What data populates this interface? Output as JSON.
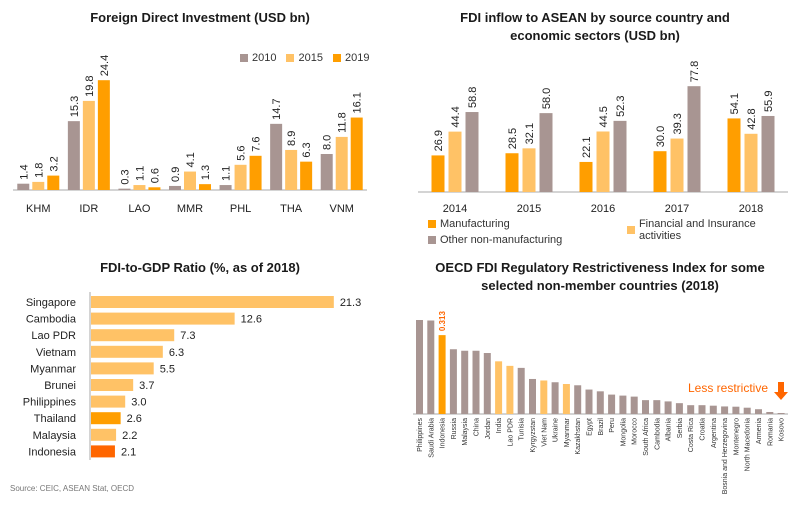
{
  "colors": {
    "c2010": "#a89592",
    "c2015": "#ffc266",
    "c2019": "#ff9e00",
    "manuf": "#ff9e00",
    "fin": "#ffc266",
    "other": "#a89592",
    "axis": "#aaaaaa",
    "highlight": "#ff6600"
  },
  "source": "Source: CEIC, ASEAN Stat, OECD",
  "chart_data": [
    {
      "type": "bar",
      "title": "Foreign Direct Investment (USD bn)",
      "categories": [
        "KHM",
        "IDR",
        "LAO",
        "MMR",
        "PHL",
        "THA",
        "VNM"
      ],
      "series": [
        {
          "name": "2010",
          "values": [
            1.4,
            15.3,
            0.3,
            0.9,
            1.1,
            14.7,
            8.0
          ],
          "labels": [
            "1.4",
            "15.3",
            "0.3",
            "0.9",
            "1.1",
            "14.7",
            "8.0"
          ]
        },
        {
          "name": "2015",
          "values": [
            1.8,
            19.8,
            1.1,
            4.1,
            5.6,
            8.9,
            11.8
          ],
          "labels": [
            "1.8",
            "19.8",
            "1.1",
            "4.1",
            "5.6",
            "8.9",
            "11.8"
          ]
        },
        {
          "name": "2019",
          "values": [
            3.2,
            24.4,
            0.6,
            1.3,
            7.6,
            6.3,
            16.1
          ],
          "labels": [
            "3.2",
            "24.4",
            "0.6",
            "1.3",
            "7.6",
            "6.3",
            "16.1"
          ]
        }
      ],
      "legend_position": "top-right"
    },
    {
      "type": "bar",
      "title": "FDI inflow to ASEAN by source country and economic sectors (USD bn)",
      "categories": [
        "2014",
        "2015",
        "2016",
        "2017",
        "2018"
      ],
      "series": [
        {
          "name": "Manufacturing",
          "values": [
            26.9,
            28.5,
            22.1,
            30.0,
            54.1
          ],
          "labels": [
            "26.9",
            "28.5",
            "22.1",
            "30.0",
            "54.1"
          ]
        },
        {
          "name": "Financial and Insurance activities",
          "values": [
            44.4,
            32.1,
            44.5,
            39.3,
            42.8
          ],
          "labels": [
            "44.4",
            "32.1",
            "44.5",
            "39.3",
            "42.8"
          ]
        },
        {
          "name": "Other non-manufacturing",
          "values": [
            58.8,
            58.0,
            52.3,
            77.8,
            55.9
          ],
          "labels": [
            "58.8",
            "58.0",
            "52.3",
            "77.8",
            "55.9"
          ]
        }
      ],
      "legend_position": "bottom"
    },
    {
      "type": "bar",
      "orientation": "horizontal",
      "title": "FDI-to-GDP Ratio (%, as of 2018)",
      "categories": [
        "Singapore",
        "Cambodia",
        "Lao PDR",
        "Vietnam",
        "Myanmar",
        "Brunei",
        "Philippines",
        "Thailand",
        "Malaysia",
        "Indonesia"
      ],
      "values": [
        21.3,
        12.6,
        7.3,
        6.3,
        5.5,
        3.7,
        3.0,
        2.6,
        2.2,
        2.1
      ],
      "labels": [
        "21.3",
        "12.6",
        "7.3",
        "6.3",
        "5.5",
        "3.7",
        "3.0",
        "2.6",
        "2.2",
        "2.1"
      ],
      "highlight": {
        "Thailand": "#ff9e00",
        "Indonesia": "#ff6600"
      }
    },
    {
      "type": "bar",
      "title": "OECD FDI Regulatory Restrictiveness Index for some selected non-member countries (2018)",
      "categories": [
        "Philippines",
        "Saudi Arabia",
        "Indonesia",
        "Russia",
        "Malaysia",
        "China",
        "Jordan",
        "India",
        "Lao PDR",
        "Tunisia",
        "Kyrgyzstan",
        "Viet Nam",
        "Ukraine",
        "Myanmar",
        "Kazakhstan",
        "Egypt",
        "Brazil",
        "Peru",
        "Mongolia",
        "Morocco",
        "South Africa",
        "Cambodia",
        "Albania",
        "Serbia",
        "Costa Rica",
        "Croatia",
        "Argentina",
        "Bosnia and Herzegovina",
        "Montenegro",
        "North Macedonia",
        "Armenia",
        "Romania",
        "Kosovo"
      ],
      "values": [
        0.373,
        0.371,
        0.313,
        0.257,
        0.251,
        0.251,
        0.242,
        0.209,
        0.191,
        0.183,
        0.139,
        0.133,
        0.126,
        0.119,
        0.114,
        0.097,
        0.09,
        0.077,
        0.073,
        0.069,
        0.055,
        0.055,
        0.05,
        0.043,
        0.035,
        0.035,
        0.033,
        0.03,
        0.029,
        0.025,
        0.019,
        0.008,
        0.004
      ],
      "highlight_label": "0.313",
      "highlight_colors": {
        "Indonesia": "#ff9e00",
        "India": "#ffc266",
        "Lao PDR": "#ffc266",
        "Viet Nam": "#ffc266",
        "Myanmar": "#ffc266"
      },
      "annotation": "Less restrictive"
    }
  ]
}
